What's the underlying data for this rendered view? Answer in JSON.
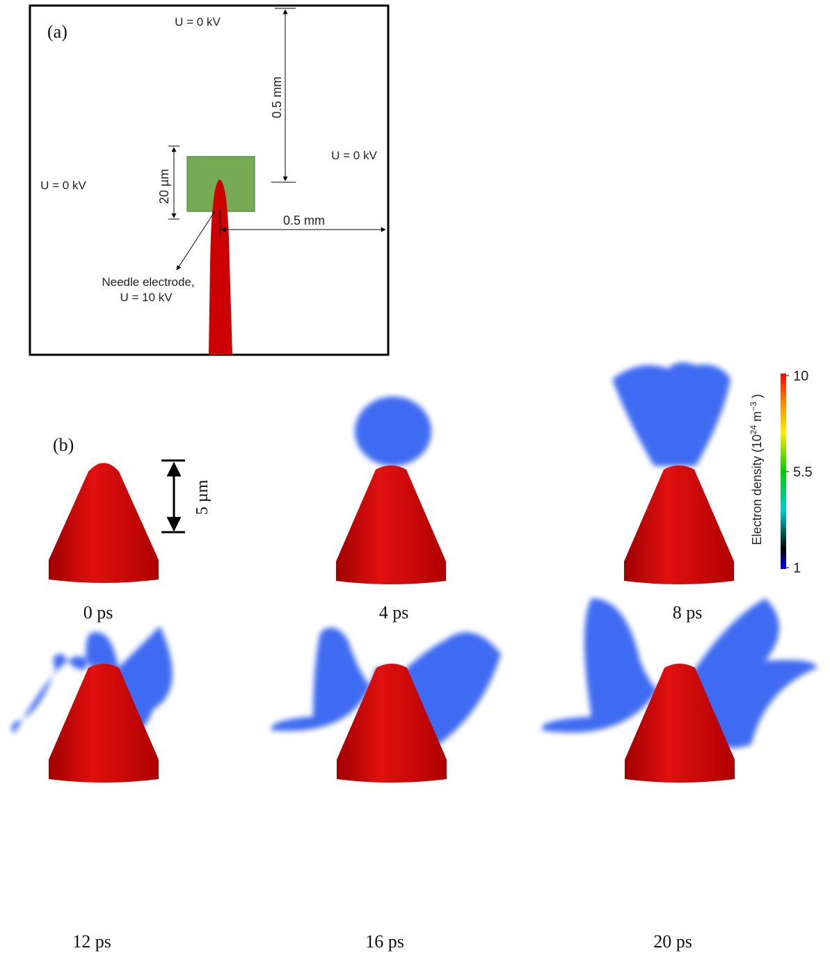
{
  "panel_a": {
    "label": "(a)",
    "top_voltage": "U = 0 kV",
    "left_voltage": "U = 0 kV",
    "right_voltage": "U = 0 kV",
    "vertical_distance": "0.5 mm",
    "horizontal_distance": "0.5 mm",
    "box_size": "20 µm",
    "needle_label": "Needle electrode,",
    "needle_voltage": "U = 10 kV"
  },
  "panel_b": {
    "label": "(b)",
    "scale_bar": "5 µm",
    "times": [
      "0 ps",
      "4 ps",
      "8 ps",
      "12 ps",
      "16 ps",
      "20 ps"
    ]
  },
  "colorbar": {
    "title": "Electron density (10",
    "title_exp1": "24",
    "title_unit": " m",
    "title_exp2": "−3",
    "title_end": " )",
    "ticks": [
      10,
      5.5,
      1
    ]
  }
}
